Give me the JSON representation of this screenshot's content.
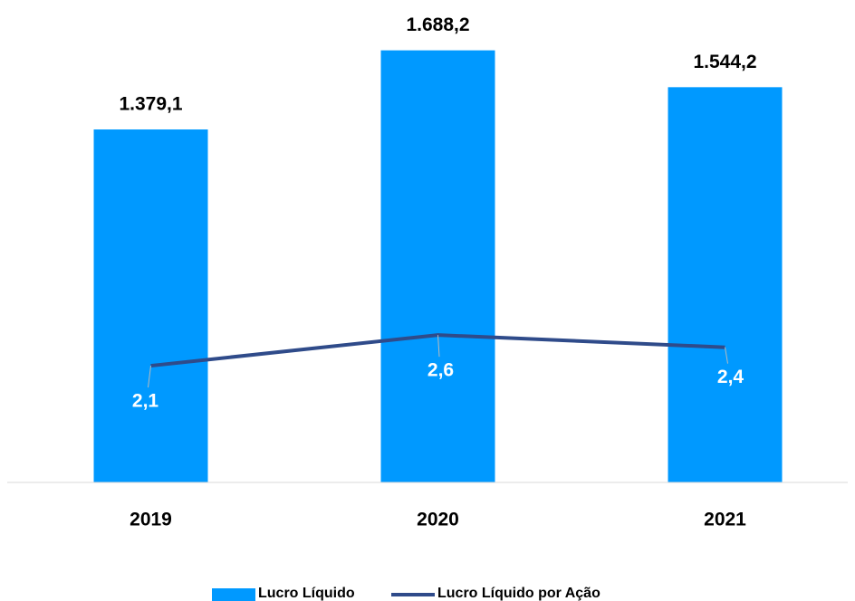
{
  "chart_data": {
    "type": "bar_line",
    "categories": [
      "2019",
      "2020",
      "2021"
    ],
    "series": [
      {
        "name": "Lucro Líquido",
        "type": "bar",
        "color": "#0099ff",
        "values": [
          1379.1,
          1688.2,
          1544.2
        ],
        "value_labels": [
          "1.379,1",
          "1.688,2",
          "1.544,2"
        ]
      },
      {
        "name": "Lucro Líquido por Ação",
        "type": "line",
        "axis": "y2",
        "color": "#2f4b8a",
        "values": [
          2.1,
          2.6,
          2.4
        ],
        "value_labels": [
          "2,1",
          "2,6",
          "2,4"
        ]
      }
    ],
    "ylim": [
      0,
      1800
    ],
    "y2lim": [
      0.2,
      7.7
    ],
    "legend": "bottom"
  }
}
